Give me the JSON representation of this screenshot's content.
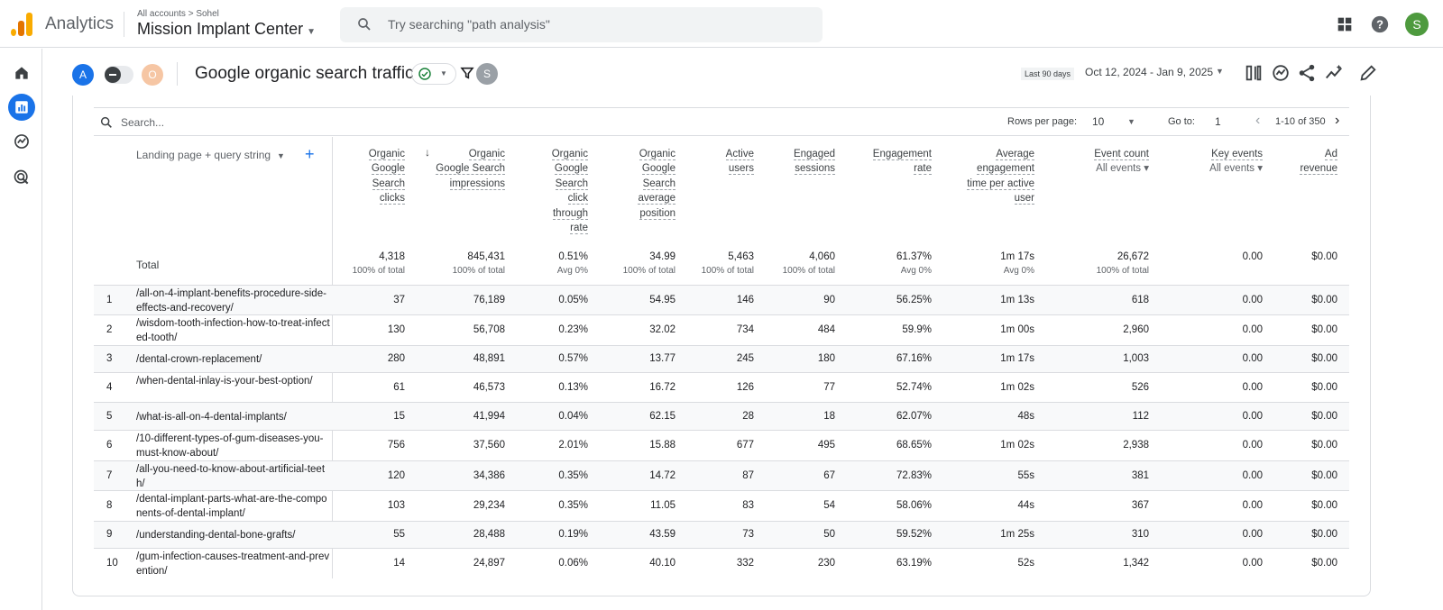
{
  "topbar": {
    "app_name": "Analytics",
    "breadcrumb": "All accounts > Sohel",
    "property": "Mission Implant Center",
    "search_placeholder": "Try searching \"path analysis\"",
    "avatar_letter": "S",
    "avatar_color": "#4e9a3e"
  },
  "sidebar": {
    "items": [
      {
        "icon": "home-icon"
      },
      {
        "icon": "reports-icon",
        "active": true
      },
      {
        "icon": "explore-icon"
      },
      {
        "icon": "advertising-icon"
      }
    ]
  },
  "report": {
    "chip_a": "A",
    "chip_o": "O",
    "title": "Google organic search traffic",
    "chip_s": "S",
    "date_label": "Last 90 days",
    "date_range": "Oct 12, 2024 - Jan 9, 2025"
  },
  "table_tools": {
    "search_placeholder": "Search...",
    "rows_per_page_label": "Rows per page:",
    "rows_per_page": "10",
    "goto_label": "Go to:",
    "goto_value": "1",
    "range": "1-10 of 350"
  },
  "table": {
    "dimension_header": "Landing page + query string",
    "columns": [
      {
        "lines": [
          "Organic",
          "Google",
          "Search",
          "clicks"
        ]
      },
      {
        "lines": [
          "Organic",
          "Google Search",
          "impressions"
        ]
      },
      {
        "lines": [
          "Organic",
          "Google",
          "Search",
          "click",
          "through",
          "rate"
        ]
      },
      {
        "lines": [
          "Organic",
          "Google",
          "Search",
          "average",
          "position"
        ]
      },
      {
        "lines": [
          "Active",
          "users"
        ]
      },
      {
        "lines": [
          "Engaged",
          "sessions"
        ]
      },
      {
        "lines": [
          "Engagement",
          "rate"
        ]
      },
      {
        "lines": [
          "Average",
          "engagement",
          "time per active",
          "user"
        ]
      },
      {
        "lines": [
          "Event count"
        ],
        "sub": "All events"
      },
      {
        "lines": [
          "Key events"
        ],
        "sub": "All events"
      },
      {
        "lines": [
          "Ad",
          "revenue"
        ]
      }
    ],
    "total_label": "Total",
    "totals": [
      {
        "value": "4,318",
        "sub": "100% of total"
      },
      {
        "value": "845,431",
        "sub": "100% of total"
      },
      {
        "value": "0.51%",
        "sub": "Avg 0%"
      },
      {
        "value": "34.99",
        "sub": "100% of total"
      },
      {
        "value": "5,463",
        "sub": "100% of total"
      },
      {
        "value": "4,060",
        "sub": "100% of total"
      },
      {
        "value": "61.37%",
        "sub": "Avg 0%"
      },
      {
        "value": "1m 17s",
        "sub": "Avg 0%"
      },
      {
        "value": "26,672",
        "sub": "100% of total"
      },
      {
        "value": "0.00",
        "sub": ""
      },
      {
        "value": "$0.00",
        "sub": ""
      }
    ],
    "rows": [
      {
        "n": "1",
        "page": "/all-on-4-implant-benefits-procedure-side-effects-and-recovery/",
        "vals": [
          "37",
          "76,189",
          "0.05%",
          "54.95",
          "146",
          "90",
          "56.25%",
          "1m 13s",
          "618",
          "0.00",
          "$0.00"
        ]
      },
      {
        "n": "2",
        "page": "/wisdom-tooth-infection-how-to-treat-infected-tooth/",
        "vals": [
          "130",
          "56,708",
          "0.23%",
          "32.02",
          "734",
          "484",
          "59.9%",
          "1m 00s",
          "2,960",
          "0.00",
          "$0.00"
        ]
      },
      {
        "n": "3",
        "page": "/dental-crown-replacement/",
        "vals": [
          "280",
          "48,891",
          "0.57%",
          "13.77",
          "245",
          "180",
          "67.16%",
          "1m 17s",
          "1,003",
          "0.00",
          "$0.00"
        ]
      },
      {
        "n": "4",
        "page": "/when-dental-inlay-is-your-best-option/",
        "vals": [
          "61",
          "46,573",
          "0.13%",
          "16.72",
          "126",
          "77",
          "52.74%",
          "1m 02s",
          "526",
          "0.00",
          "$0.00"
        ]
      },
      {
        "n": "5",
        "page": "/what-is-all-on-4-dental-implants/",
        "vals": [
          "15",
          "41,994",
          "0.04%",
          "62.15",
          "28",
          "18",
          "62.07%",
          "48s",
          "112",
          "0.00",
          "$0.00"
        ]
      },
      {
        "n": "6",
        "page": "/10-different-types-of-gum-diseases-you-must-know-about/",
        "vals": [
          "756",
          "37,560",
          "2.01%",
          "15.88",
          "677",
          "495",
          "68.65%",
          "1m 02s",
          "2,938",
          "0.00",
          "$0.00"
        ]
      },
      {
        "n": "7",
        "page": "/all-you-need-to-know-about-artificial-teeth/",
        "vals": [
          "120",
          "34,386",
          "0.35%",
          "14.72",
          "87",
          "67",
          "72.83%",
          "55s",
          "381",
          "0.00",
          "$0.00"
        ]
      },
      {
        "n": "8",
        "page": "/dental-implant-parts-what-are-the-components-of-dental-implant/",
        "vals": [
          "103",
          "29,234",
          "0.35%",
          "11.05",
          "83",
          "54",
          "58.06%",
          "44s",
          "367",
          "0.00",
          "$0.00"
        ]
      },
      {
        "n": "9",
        "page": "/understanding-dental-bone-grafts/",
        "vals": [
          "55",
          "28,488",
          "0.19%",
          "43.59",
          "73",
          "50",
          "59.52%",
          "1m 25s",
          "310",
          "0.00",
          "$0.00"
        ]
      },
      {
        "n": "10",
        "page": "/gum-infection-causes-treatment-and-prevention/",
        "vals": [
          "14",
          "24,897",
          "0.06%",
          "40.10",
          "332",
          "230",
          "63.19%",
          "52s",
          "1,342",
          "0.00",
          "$0.00"
        ]
      }
    ]
  }
}
